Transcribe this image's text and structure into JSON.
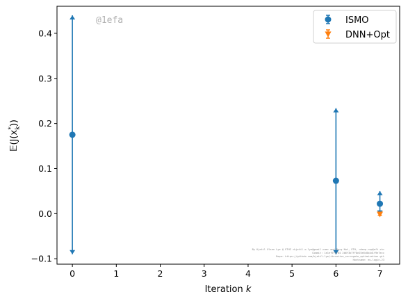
{
  "chart_data": {
    "type": "scatter",
    "xlabel_main": "Iteration ",
    "xlabel_var": "k",
    "ylabel": "𝔼(J(x",
    "ylabel_sub": "k",
    "ylabel_sup": "*",
    "ylabel_end": "))",
    "xlim": [
      -0.35,
      7.45
    ],
    "ylim": [
      -0.112,
      0.46
    ],
    "x_ticks": [
      0,
      1,
      2,
      3,
      4,
      5,
      6,
      7
    ],
    "y_ticks": [
      -0.1,
      0.0,
      0.1,
      0.2,
      0.3,
      0.4
    ],
    "y_tick_labels": [
      "−0.1",
      "0.0",
      "0.1",
      "0.2",
      "0.3",
      "0.4"
    ],
    "grid": false,
    "legend_position": "top-right",
    "series": [
      {
        "name": "ISMO",
        "color": "#1f77b4",
        "marker": "circle",
        "points": [
          {
            "x": 0,
            "y": 0.175,
            "lower": -0.09,
            "upper": 0.44
          },
          {
            "x": 6,
            "y": 0.073,
            "lower": -0.09,
            "upper": 0.234
          },
          {
            "x": 7,
            "y": 0.022,
            "lower": -0.002,
            "upper": 0.05
          }
        ]
      },
      {
        "name": "DNN+Opt",
        "color": "#ff7f0e",
        "marker": "triangle-down",
        "points": [
          {
            "x": 7,
            "y": -0.001,
            "lower": -0.004,
            "upper": 0.002
          }
        ]
      }
    ]
  },
  "annotations": {
    "tag": "@1efa",
    "footer_lines": [
      "By Kjetil Olsen Lye @ ETHZ <kjetil.o.lye@gmail.com> and Borg Nut, ETH, <deep.rop@eft.ch>",
      "Commit: 1e1ef5f1784 2b6f3b7ff8e25e6c8b4d1f9e7ecc",
      "Repo: https://github.com/kjetil-lye/iterative_surrogate_optimization.git",
      "Hostname: eu-login-23"
    ]
  },
  "colors": {
    "ismo": "#1f77b4",
    "dnn_opt": "#ff7f0e",
    "axis": "#000000",
    "legend_border": "#d0d0d0"
  }
}
